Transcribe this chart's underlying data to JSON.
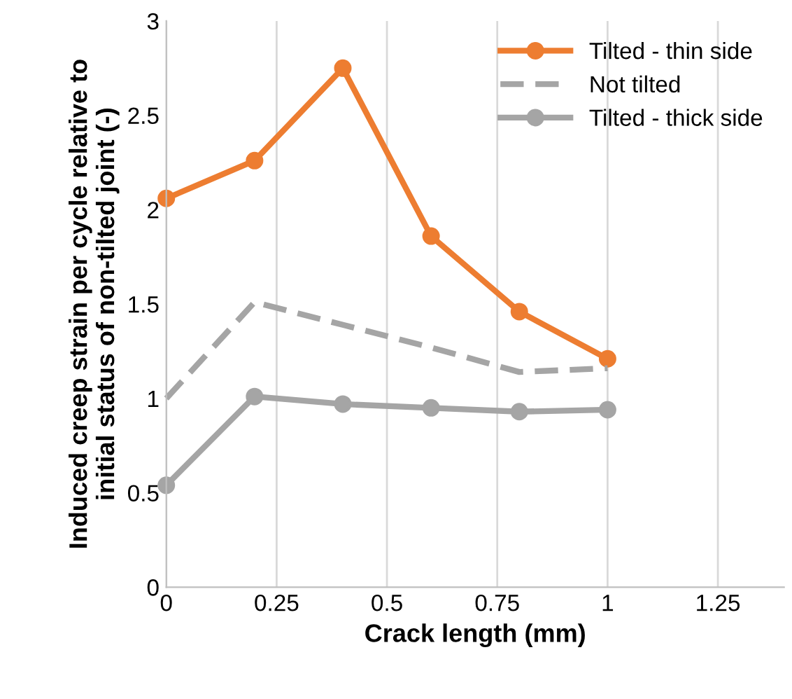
{
  "chart_data": {
    "type": "line",
    "xlabel": "Crack length (mm)",
    "ylabel": "Induced creep strain per cycle relative to\ninitial status of non-tilted joint (-)",
    "x": [
      0,
      0.2,
      0.4,
      0.6,
      0.8,
      1
    ],
    "series": [
      {
        "name": "Tilted - thin side",
        "color": "#ed7d31",
        "values": [
          2.06,
          2.26,
          2.75,
          1.86,
          1.46,
          1.21
        ],
        "marker": "circle",
        "line_style": "solid"
      },
      {
        "name": "Not tilted",
        "color": "#a5a5a5",
        "values": [
          1.0,
          1.51,
          1.39,
          1.27,
          1.14,
          1.16
        ],
        "marker": "none",
        "line_style": "dashed"
      },
      {
        "name": "Tilted - thick side",
        "color": "#a5a5a5",
        "values": [
          0.54,
          1.01,
          0.97,
          0.95,
          0.93,
          0.94
        ],
        "marker": "circle",
        "line_style": "solid"
      }
    ],
    "xlim": [
      0,
      1.4
    ],
    "xticks": [
      0,
      0.25,
      0.5,
      0.75,
      1,
      1.25
    ],
    "ylim": [
      0,
      3
    ],
    "yticks": [
      0,
      0.5,
      1,
      1.5,
      2,
      2.5,
      3
    ],
    "grid": "x",
    "legend": "top right"
  }
}
